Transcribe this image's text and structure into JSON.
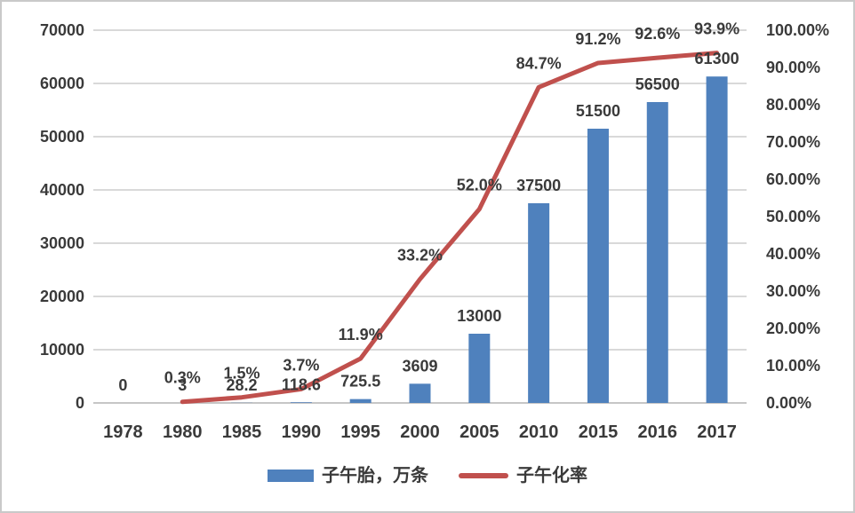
{
  "chart_data": {
    "type": "combo",
    "categories": [
      "1978",
      "1980",
      "1985",
      "1990",
      "1995",
      "2000",
      "2005",
      "2010",
      "2015",
      "2016",
      "2017"
    ],
    "series": [
      {
        "name": "子午胎，万条",
        "type": "bar",
        "axis": "left",
        "color": "#4F81BD",
        "values": [
          0,
          3,
          28.2,
          118.6,
          725.5,
          3609,
          13000,
          37500,
          51500,
          56500,
          61300
        ],
        "labels": [
          "0",
          "3",
          "28.2",
          "118.6",
          "725.5",
          "3609",
          "13000",
          "37500",
          "51500",
          "56500",
          "61300"
        ]
      },
      {
        "name": "子午化率",
        "type": "line",
        "axis": "right",
        "color": "#C0504D",
        "values": [
          null,
          0.3,
          1.5,
          3.7,
          11.9,
          33.2,
          52.0,
          84.7,
          91.2,
          92.6,
          93.9
        ],
        "labels": [
          null,
          "0.3%",
          "1.5%",
          "3.7%",
          "11.9%",
          "33.2%",
          "52.0%",
          "84.7%",
          "91.2%",
          "92.6%",
          "93.9%"
        ]
      }
    ],
    "left_axis": {
      "min": 0,
      "max": 70000,
      "step": 10000,
      "tick_labels": [
        "0",
        "10000",
        "20000",
        "30000",
        "40000",
        "50000",
        "60000",
        "70000"
      ]
    },
    "right_axis": {
      "min": 0,
      "max": 100,
      "step": 10,
      "tick_labels": [
        "0.00%",
        "10.00%",
        "20.00%",
        "30.00%",
        "40.00%",
        "50.00%",
        "60.00%",
        "70.00%",
        "80.00%",
        "90.00%",
        "100.00%"
      ]
    },
    "grid": true,
    "legend_position": "bottom",
    "colors": {
      "bar": "#4F81BD",
      "line": "#C0504D",
      "grid": "#D9D9D9",
      "axis_line": "#C6C6C6",
      "text": "#3A3A3A",
      "frame_border": "#C9C9C9"
    }
  }
}
